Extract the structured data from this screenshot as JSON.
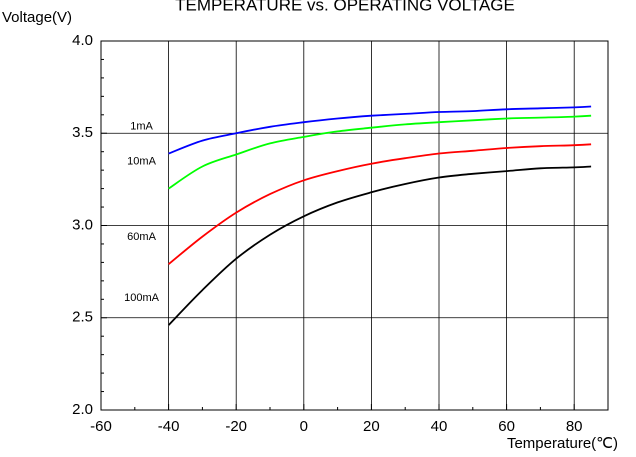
{
  "chart_data": {
    "type": "line",
    "title": "TEMPERATURE vs. OPERATING VOLTAGE",
    "xlabel": "Temperature(℃)",
    "ylabel": "Voltage(V)",
    "xlim": [
      -60,
      90
    ],
    "ylim": [
      2.0,
      4.0
    ],
    "x_ticks": [
      -60,
      -40,
      -20,
      0,
      20,
      40,
      60,
      80
    ],
    "x_tick_labels": [
      "-60",
      "-40",
      "-20",
      "0",
      "20",
      "40",
      "60",
      "80"
    ],
    "y_ticks": [
      2.0,
      2.5,
      3.0,
      3.5,
      4.0
    ],
    "y_tick_labels": [
      "2.0",
      "2.5",
      "3.0",
      "3.5",
      "4.0"
    ],
    "grid": true,
    "legend": "labels placed beside curves (left)",
    "series": [
      {
        "name": "1mA",
        "color": "#0000ff",
        "x": [
          -40,
          -30,
          -20,
          -10,
          0,
          10,
          20,
          30,
          40,
          50,
          60,
          70,
          80,
          85
        ],
        "y": [
          3.39,
          3.46,
          3.5,
          3.535,
          3.56,
          3.58,
          3.595,
          3.605,
          3.615,
          3.62,
          3.63,
          3.635,
          3.64,
          3.645
        ]
      },
      {
        "name": "10mA",
        "color": "#00ff00",
        "x": [
          -40,
          -30,
          -20,
          -10,
          0,
          10,
          20,
          30,
          40,
          50,
          60,
          70,
          80,
          85
        ],
        "y": [
          3.2,
          3.32,
          3.385,
          3.445,
          3.48,
          3.51,
          3.53,
          3.548,
          3.56,
          3.57,
          3.58,
          3.585,
          3.59,
          3.595
        ]
      },
      {
        "name": "60mA",
        "color": "#ff0000",
        "x": [
          -40,
          -30,
          -20,
          -10,
          0,
          10,
          20,
          30,
          40,
          50,
          60,
          70,
          80,
          85
        ],
        "y": [
          2.79,
          2.94,
          3.07,
          3.17,
          3.245,
          3.295,
          3.335,
          3.365,
          3.39,
          3.405,
          3.42,
          3.43,
          3.435,
          3.44
        ]
      },
      {
        "name": "100mA",
        "color": "#000000",
        "x": [
          -40,
          -30,
          -20,
          -10,
          0,
          10,
          20,
          30,
          40,
          50,
          60,
          70,
          80,
          85
        ],
        "y": [
          2.46,
          2.65,
          2.82,
          2.95,
          3.05,
          3.125,
          3.18,
          3.225,
          3.26,
          3.28,
          3.295,
          3.31,
          3.315,
          3.32
        ]
      }
    ]
  }
}
